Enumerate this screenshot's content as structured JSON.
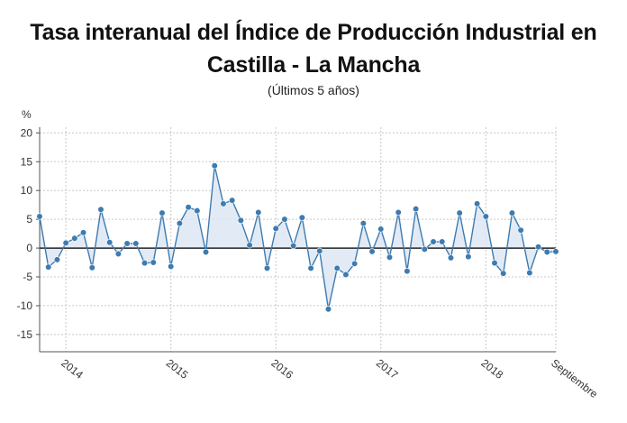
{
  "chart_data": {
    "type": "line",
    "title": "Tasa interanual del Índice de Producción Industrial en Castilla - La Mancha",
    "subtitle": "(Últimos 5 años)",
    "ylabel": "%",
    "xlabel": "",
    "ylim": [
      -18,
      21
    ],
    "yticks": [
      20,
      15,
      10,
      5,
      0,
      -5,
      -10,
      -15
    ],
    "x_tick_labels": [
      "2014",
      "2015",
      "2016",
      "2017",
      "2018",
      "Septiembre"
    ],
    "grid": true,
    "legend": "none",
    "colors": {
      "line": "#3e7bb0",
      "marker": "#3e7bb0",
      "fill": "#dde8f3",
      "grid": "#c8c8c8",
      "zero_line": "#222222"
    },
    "series": [
      {
        "values": [
          5.5,
          -3.3,
          -2.0,
          0.9,
          1.7,
          2.7,
          -3.4,
          6.7,
          1.0,
          -1.0,
          0.8,
          0.8,
          -2.6,
          -2.5,
          6.1,
          -3.2,
          4.3,
          7.1,
          6.5,
          -0.7,
          14.3,
          7.7,
          8.3,
          4.8,
          0.5,
          6.2,
          -3.5,
          3.4,
          5.0,
          0.4,
          5.3,
          -3.5,
          -0.5,
          -10.6,
          -3.5,
          -4.6,
          -2.7,
          4.3,
          -0.6,
          3.3,
          -1.6,
          6.2,
          -4.0,
          6.8,
          -0.2,
          1.1,
          1.1,
          -1.7,
          6.1,
          -1.5,
          7.7,
          5.5,
          -2.6,
          -4.4,
          6.1,
          3.1,
          -4.3,
          0.2,
          -0.7,
          -0.6
        ]
      }
    ]
  }
}
